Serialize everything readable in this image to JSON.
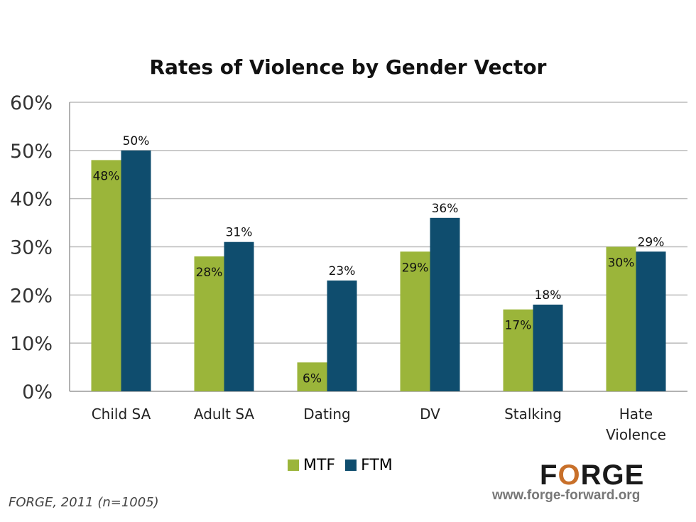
{
  "chart_data": {
    "type": "bar",
    "title": "Rates of Violence by Gender Vector",
    "categories": [
      [
        "Child SA"
      ],
      [
        "Adult SA"
      ],
      [
        "Dating"
      ],
      [
        "DV"
      ],
      [
        "Stalking"
      ],
      [
        "Hate",
        "Violence"
      ]
    ],
    "series": [
      {
        "name": "MTF",
        "color": "#9bb53a",
        "values": [
          48,
          28,
          6,
          29,
          17,
          30
        ],
        "labels": [
          "48%",
          "28%",
          "6%",
          "29%",
          "17%",
          "30%"
        ]
      },
      {
        "name": "FTM",
        "color": "#0f4d6e",
        "values": [
          50,
          31,
          23,
          36,
          18,
          29
        ],
        "labels": [
          "50%",
          "31%",
          "23%",
          "36%",
          "18%",
          "29%"
        ]
      }
    ],
    "ylim": [
      0,
      60
    ],
    "yticks": [
      "0%",
      "10%",
      "20%",
      "30%",
      "40%",
      "50%",
      "60%"
    ],
    "grid": true,
    "legend": "bottom"
  },
  "source": "FORGE, 2011 (n=1005)",
  "logo": {
    "text_pre": "F",
    "text_o": "O",
    "text_post": "RGE",
    "url": "www.forge-forward.org"
  }
}
